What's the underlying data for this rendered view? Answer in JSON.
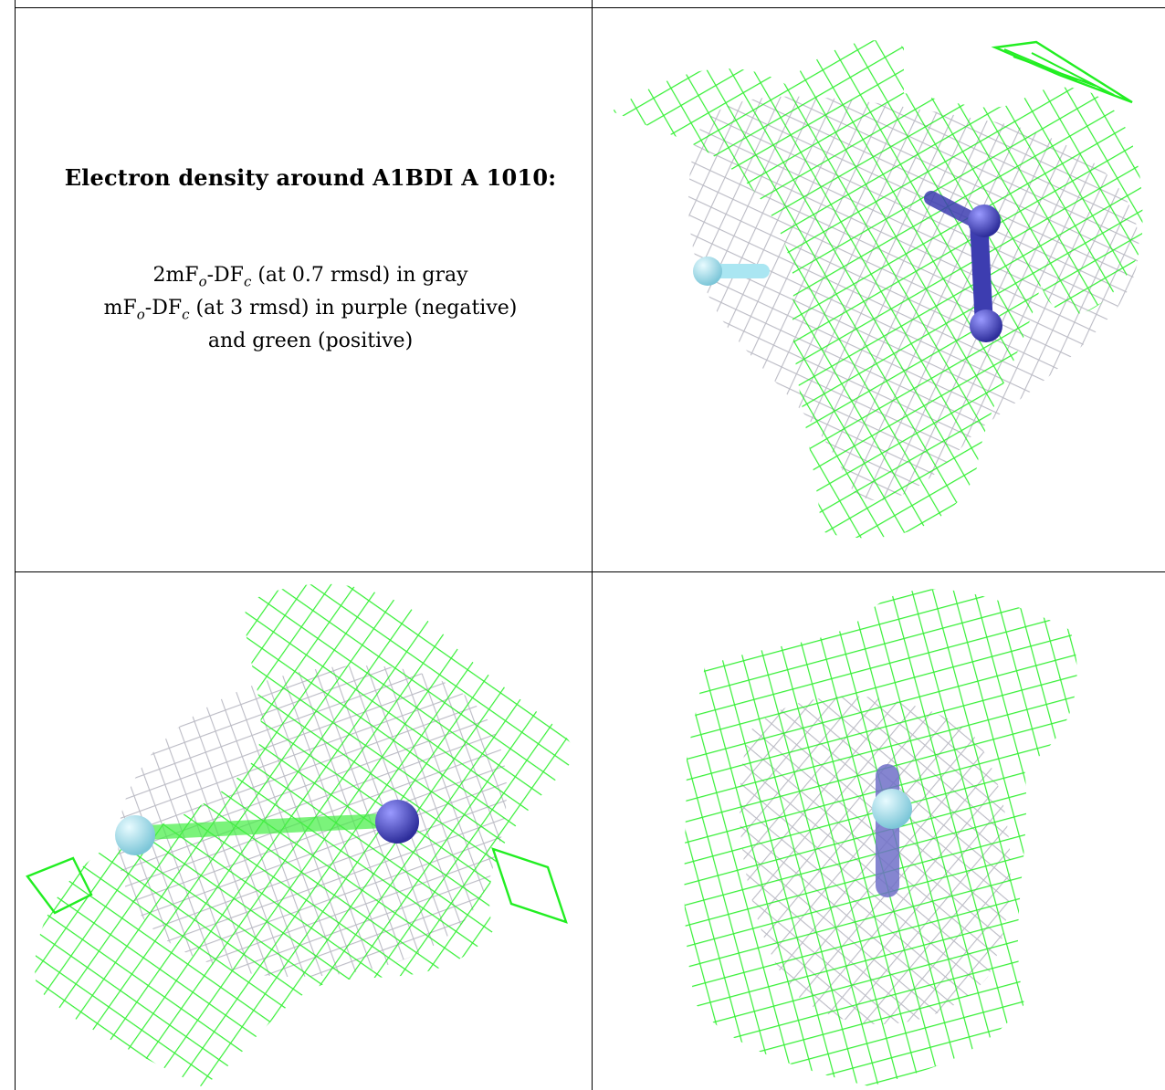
{
  "caption": {
    "title": "Electron density around A1BDI A 1010:",
    "line1": {
      "pre": "2mF",
      "sub1": "o",
      "mid": "-DF",
      "sub2": "c",
      "post": " (at 0.7 rmsd) in gray"
    },
    "line2": {
      "pre": "mF",
      "sub1": "o",
      "mid": "-DF",
      "sub2": "c",
      "post": " (at 3 rmsd) in purple (negative)"
    },
    "line3": "and green (positive)"
  },
  "colors": {
    "positive_mesh": "#22ee22",
    "gray_mesh": "#b8b8c2",
    "negative_atom": "#4c4cc4",
    "ligand_atom": "#aae6f2"
  },
  "panels": [
    {
      "view": "top-right"
    },
    {
      "view": "bottom-left"
    },
    {
      "view": "bottom-right"
    }
  ]
}
